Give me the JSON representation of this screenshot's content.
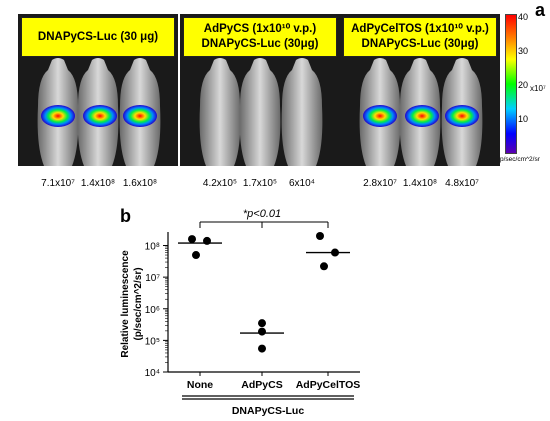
{
  "panel_a": {
    "letter": "a",
    "groups": [
      {
        "title_lines": [
          "DNAPyCS-Luc (30 μg)"
        ],
        "values": [
          "7.1x10⁷",
          "1.4x10⁸",
          "1.6x10⁸"
        ],
        "signal": [
          1,
          1,
          1
        ]
      },
      {
        "title_lines": [
          "AdPyCS (1x10¹⁰ v.p.)",
          "DNAPyCS-Luc (30μg)"
        ],
        "values": [
          "4.2x10⁵",
          "1.7x10⁵",
          "6x10⁴"
        ],
        "signal": [
          0,
          0,
          0
        ]
      },
      {
        "title_lines": [
          "AdPyCelTOS (1x10¹⁰ v.p.)",
          "DNAPyCS-Luc (30μg)"
        ],
        "values": [
          "2.8x10⁷",
          "1.4x10⁸",
          "4.8x10⁷"
        ],
        "signal": [
          1,
          1,
          1
        ]
      }
    ],
    "colorbar": {
      "ticks": [
        "40",
        "30",
        "20",
        "10"
      ],
      "exponent_label": "x10⁷",
      "unit": "p/sec/cm^2/sr",
      "colors": [
        "#ff0000",
        "#ff8800",
        "#ffff00",
        "#00ff00",
        "#00ccff",
        "#0000ff",
        "#6600cc"
      ]
    }
  },
  "panel_b": {
    "letter": "b",
    "significance": "*p<0.01",
    "bottom_label": "DNAPyCS-Luc",
    "chart_data": {
      "type": "scatter",
      "categories": [
        "None",
        "AdPyCS",
        "AdPyCelTOS"
      ],
      "ylabel": "Relative luminescence (p/sec/cm^2/sr)",
      "ylabel_lines": [
        "Relative luminescence",
        "(p/sec/cm^2/sr)"
      ],
      "yscale": "log",
      "ylim": [
        10000,
        200000000
      ],
      "yticks": [
        {
          "value": 10000,
          "label": "10⁴"
        },
        {
          "value": 100000,
          "label": "10⁵"
        },
        {
          "value": 1000000,
          "label": "10⁶"
        },
        {
          "value": 10000000,
          "label": "10⁷"
        },
        {
          "value": 100000000,
          "label": "10⁸"
        }
      ],
      "series": [
        {
          "category": "None",
          "points": [
            160000000,
            140000000,
            50000000
          ],
          "mean": 120000000
        },
        {
          "category": "AdPyCS",
          "points": [
            350000,
            190000,
            55000
          ],
          "mean": 170000
        },
        {
          "category": "AdPyCelTOS",
          "points": [
            200000000,
            60000000,
            22000000
          ],
          "mean": 60000000
        }
      ]
    }
  }
}
